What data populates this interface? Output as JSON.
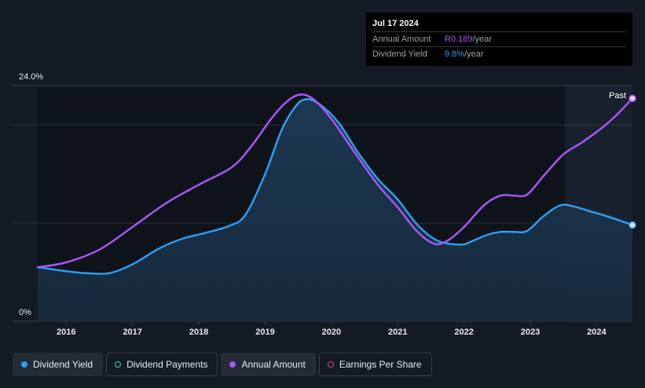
{
  "tooltip": {
    "date": "Jul 17 2024",
    "annual_amount_label": "Annual Amount",
    "annual_amount_value": "R0.189",
    "annual_amount_unit": "/year",
    "dividend_yield_label": "Dividend Yield",
    "dividend_yield_value": "9.8%",
    "dividend_yield_unit": "/year"
  },
  "past_label": "Past",
  "legend": [
    {
      "label": "Dividend Yield",
      "color": "#2d9cf0",
      "style": "filled",
      "active": true
    },
    {
      "label": "Dividend Payments",
      "color": "#2fd4c0",
      "style": "hollow",
      "active": false
    },
    {
      "label": "Annual Amount",
      "color": "#a855f7",
      "style": "filled",
      "active": true
    },
    {
      "label": "Earnings Per Share",
      "color": "#e0457b",
      "style": "hollow",
      "active": false
    }
  ],
  "colors": {
    "yield": "#2d9cf0",
    "amount": "#a855f7",
    "background": "#151b24"
  },
  "chart_data": {
    "type": "line",
    "title": "",
    "xlabel": "",
    "ylabel": "",
    "ylim": [
      0,
      24
    ],
    "y_tick_labels": [
      "24.0%",
      "0%"
    ],
    "x_tick_labels": [
      "2016",
      "2017",
      "2018",
      "2019",
      "2020",
      "2021",
      "2022",
      "2023",
      "2024"
    ],
    "xlim": [
      2015.57,
      2024.54
    ],
    "forecast_start": 2023.52,
    "series": [
      {
        "name": "Dividend Yield",
        "unit": "%",
        "area": true,
        "x": [
          2015.57,
          2016.0,
          2016.3,
          2016.65,
          2017.0,
          2017.4,
          2017.75,
          2018.1,
          2018.45,
          2018.7,
          2019.0,
          2019.25,
          2019.45,
          2019.6,
          2019.8,
          2020.1,
          2020.4,
          2020.7,
          2021.0,
          2021.3,
          2021.6,
          2021.95,
          2022.1,
          2022.35,
          2022.55,
          2022.75,
          2022.95,
          2023.2,
          2023.45,
          2023.65,
          2023.9,
          2024.2,
          2024.54
        ],
        "y": [
          5.5,
          5.1,
          4.9,
          4.9,
          5.8,
          7.4,
          8.4,
          9.0,
          9.7,
          10.8,
          15.0,
          19.5,
          21.8,
          22.6,
          22.2,
          20.3,
          17.2,
          14.5,
          12.4,
          9.8,
          8.2,
          7.8,
          8.1,
          8.8,
          9.1,
          9.1,
          9.2,
          10.7,
          11.8,
          11.7,
          11.2,
          10.6,
          9.8
        ]
      },
      {
        "name": "Annual Amount",
        "unit": "%",
        "area": false,
        "x": [
          2015.57,
          2016.0,
          2016.5,
          2017.0,
          2017.5,
          2018.0,
          2018.5,
          2018.8,
          2019.1,
          2019.35,
          2019.55,
          2019.75,
          2020.0,
          2020.35,
          2020.7,
          2021.0,
          2021.3,
          2021.55,
          2021.75,
          2022.0,
          2022.3,
          2022.55,
          2022.75,
          2022.95,
          2023.2,
          2023.5,
          2023.8,
          2024.1,
          2024.3,
          2024.54
        ],
        "y": [
          5.5,
          6.0,
          7.3,
          9.6,
          12.0,
          13.9,
          15.7,
          17.9,
          20.7,
          22.5,
          23.1,
          22.5,
          20.6,
          17.2,
          13.9,
          11.6,
          9.1,
          7.9,
          8.2,
          9.6,
          11.8,
          12.8,
          12.8,
          12.9,
          14.8,
          17.0,
          18.3,
          19.8,
          21.0,
          22.7
        ]
      }
    ]
  }
}
